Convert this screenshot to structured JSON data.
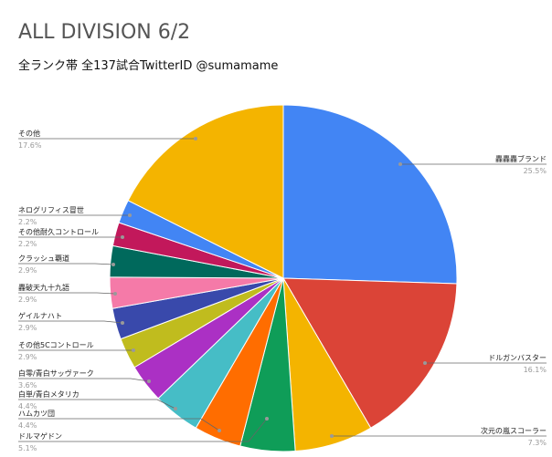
{
  "chart_data": {
    "type": "pie",
    "title": "ALL DIVISION 6/2",
    "subtitle": "全ランク帯 全137試合TwitterID @sumamame",
    "categories": [
      "轟轟轟ブランド",
      "ドルガンバスター",
      "次元の嵐スコーラー",
      "ドルマゲドン",
      "ハムカツ団",
      "白単/青白メタリカ",
      "白零/青白サッヴァーク",
      "その他5Cコントロール",
      "ゲイルナハト",
      "轟破天九十九語",
      "クラッシュ覇道",
      "その他耐久コントロール",
      "ネログリフィス冒世",
      "その他"
    ],
    "values": [
      25.5,
      16.1,
      7.3,
      5.1,
      4.4,
      4.4,
      3.6,
      2.9,
      2.9,
      2.9,
      2.9,
      2.2,
      2.2,
      17.6
    ],
    "value_labels": [
      "25.5%",
      "16.1%",
      "7.3%",
      "5.1%",
      "4.4%",
      "4.4%",
      "3.6%",
      "2.9%",
      "2.9%",
      "2.9%",
      "2.9%",
      "2.2%",
      "2.2%",
      "17.6%"
    ],
    "colors": [
      "#4285f4",
      "#db4437",
      "#f4b400",
      "#0f9d58",
      "#ff6d00",
      "#46bdc6",
      "#ab30c4",
      "#c0bc1e",
      "#3949ab",
      "#f57aa8",
      "#00695c",
      "#c2185b",
      "#4285f4",
      "#f4b400"
    ]
  }
}
